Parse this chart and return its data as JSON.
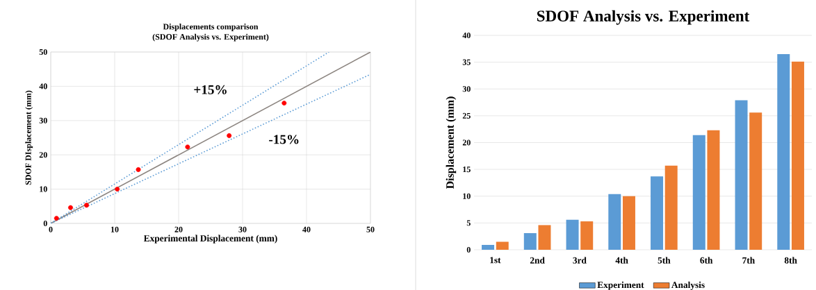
{
  "chart_data": [
    {
      "type": "scatter",
      "title": "Displacements comparison",
      "subtitle": "(SDOF Analysis  vs. Experiment)",
      "xlabel": "Experimental Displacement (mm)",
      "ylabel": "SDOF DIsplacement (mm)",
      "xlim": [
        0,
        50
      ],
      "ylim": [
        0,
        50
      ],
      "xticks": [
        0,
        10,
        20,
        30,
        40,
        50
      ],
      "yticks": [
        0,
        10,
        20,
        30,
        40,
        50
      ],
      "grid": true,
      "series": [
        {
          "type": "scatter",
          "color": "#ff0000",
          "marker": "circle",
          "x": [
            0.9,
            3.1,
            5.6,
            10.4,
            13.7,
            21.4,
            27.9,
            36.5
          ],
          "values": [
            1.5,
            4.6,
            5.3,
            10.0,
            15.7,
            22.3,
            25.6,
            35.1
          ]
        },
        {
          "type": "line",
          "color": "#8c8580",
          "line_style": "solid",
          "x": [
            0,
            50
          ],
          "values": [
            0,
            50
          ]
        },
        {
          "type": "line",
          "color": "#5b9bd5",
          "line_style": "dotted",
          "x": [
            0,
            43.5
          ],
          "values": [
            0,
            50
          ]
        },
        {
          "type": "line",
          "color": "#5b9bd5",
          "line_style": "dotted",
          "x": [
            0,
            50
          ],
          "values": [
            0,
            43.5
          ]
        }
      ],
      "annotations": [
        "+15%",
        "-15%"
      ]
    },
    {
      "type": "bar",
      "title": "SDOF Analysis vs. Experiment",
      "ylabel": "Displacement (mm)",
      "categories": [
        "1st",
        "2nd",
        "3rd",
        "4th",
        "5th",
        "6th",
        "7th",
        "8th"
      ],
      "ylim": [
        0,
        40
      ],
      "yticks": [
        0,
        5,
        10,
        15,
        20,
        25,
        30,
        35,
        40
      ],
      "grid": "y",
      "legend": "bottom",
      "series": [
        {
          "name": "Experiment",
          "color": "#5b9bd5",
          "values": [
            0.9,
            3.1,
            5.6,
            10.4,
            13.7,
            21.4,
            27.9,
            36.5
          ]
        },
        {
          "name": "Analysis",
          "color": "#ed7d31",
          "values": [
            1.5,
            4.6,
            5.3,
            10.0,
            15.7,
            22.3,
            25.6,
            35.1
          ]
        }
      ]
    }
  ]
}
